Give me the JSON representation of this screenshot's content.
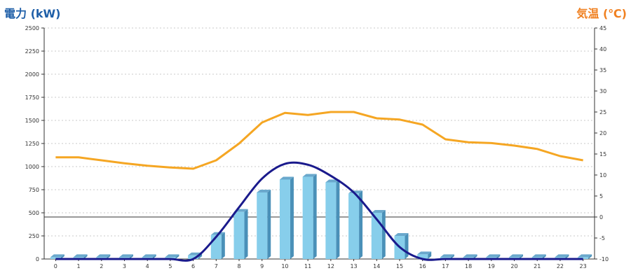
{
  "chart_data": {
    "type": "bar+line",
    "left_axis": {
      "title": "電力 (kW)",
      "range": [
        0,
        2500
      ],
      "ticks": [
        "0",
        "250",
        "500",
        "750",
        "1000",
        "1250",
        "1500",
        "1750",
        "2000",
        "2250",
        "2500"
      ]
    },
    "right_axis": {
      "title": "気温 (℃)",
      "range": [
        -10,
        45
      ],
      "ticks": [
        "-10",
        "-5",
        "0",
        "5",
        "10",
        "15",
        "20",
        "25",
        "30",
        "35",
        "40",
        "45"
      ]
    },
    "categories": [
      "0",
      "1",
      "2",
      "3",
      "4",
      "5",
      "6",
      "7",
      "8",
      "9",
      "10",
      "11",
      "12",
      "13",
      "14",
      "15",
      "16",
      "17",
      "18",
      "19",
      "20",
      "21",
      "22",
      "23"
    ],
    "grid": true,
    "series": [
      {
        "type": "bar",
        "axis": "left",
        "color": "#87ceeb",
        "values": [
          20,
          20,
          20,
          20,
          20,
          20,
          40,
          260,
          510,
          720,
          860,
          890,
          830,
          710,
          500,
          250,
          50,
          20,
          20,
          20,
          20,
          20,
          20,
          20
        ]
      },
      {
        "type": "line",
        "axis": "left",
        "color": "#1a1a8c",
        "smooth": true,
        "values": [
          0,
          0,
          0,
          0,
          0,
          0,
          0,
          240,
          560,
          870,
          1030,
          1020,
          900,
          720,
          430,
          130,
          0,
          0,
          0,
          0,
          0,
          0,
          0,
          0
        ]
      },
      {
        "type": "line",
        "axis": "right",
        "color": "#f5a623",
        "values": [
          14.2,
          14.2,
          13.5,
          12.8,
          12.2,
          11.8,
          11.5,
          13.5,
          17.5,
          22.5,
          24.8,
          24.3,
          25.0,
          25.0,
          23.5,
          23.2,
          22.0,
          18.5,
          17.8,
          17.6,
          17.0,
          16.2,
          14.5,
          13.5
        ]
      }
    ]
  }
}
